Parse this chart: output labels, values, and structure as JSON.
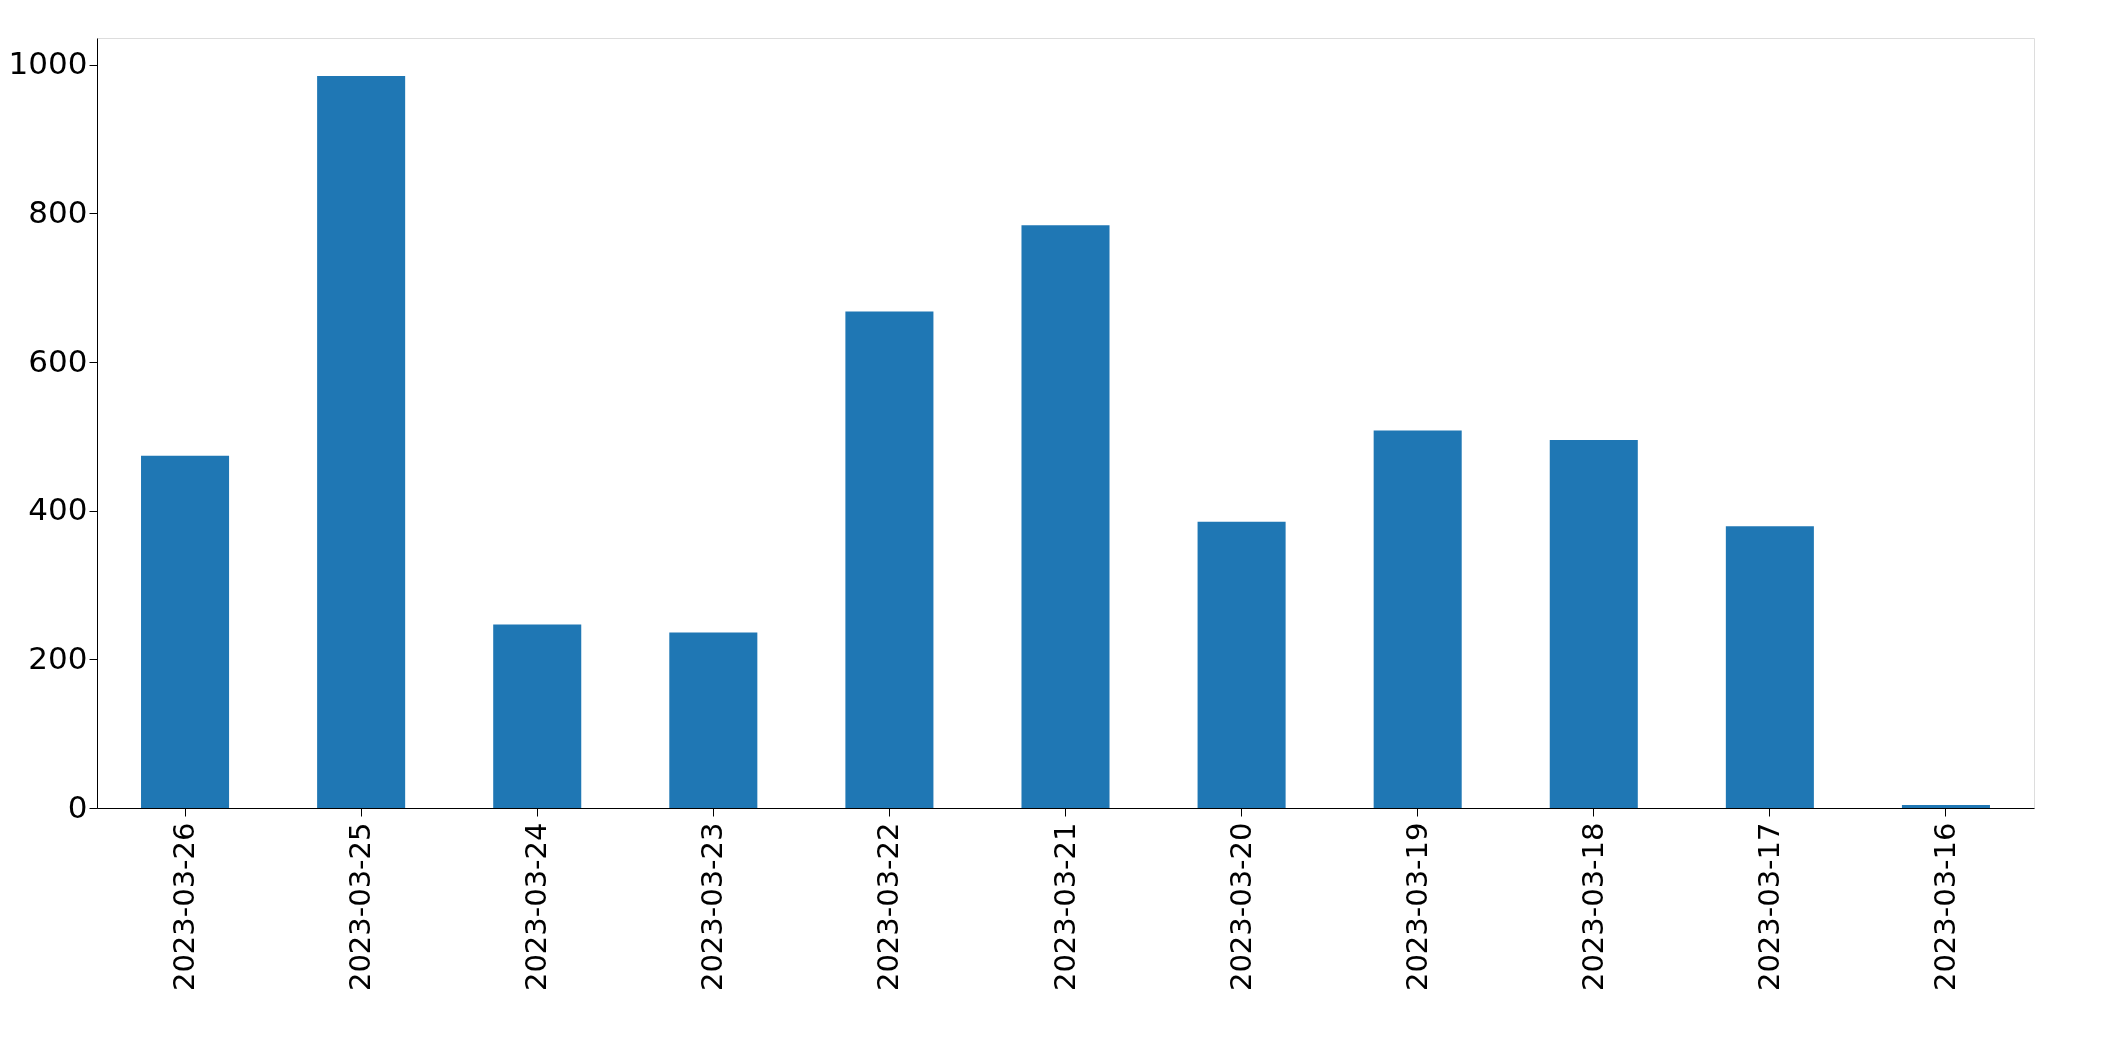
{
  "chart_data": {
    "type": "bar",
    "categories": [
      "2023-03-26",
      "2023-03-25",
      "2023-03-24",
      "2023-03-23",
      "2023-03-22",
      "2023-03-21",
      "2023-03-20",
      "2023-03-19",
      "2023-03-18",
      "2023-03-17",
      "2023-03-16"
    ],
    "values": [
      474,
      985,
      247,
      236,
      668,
      784,
      385,
      508,
      495,
      379,
      4
    ],
    "color": "#1f77b4",
    "ylim": [
      0,
      1036
    ],
    "yticks": [
      0,
      200,
      400,
      600,
      800,
      1000
    ],
    "grid": false
  }
}
